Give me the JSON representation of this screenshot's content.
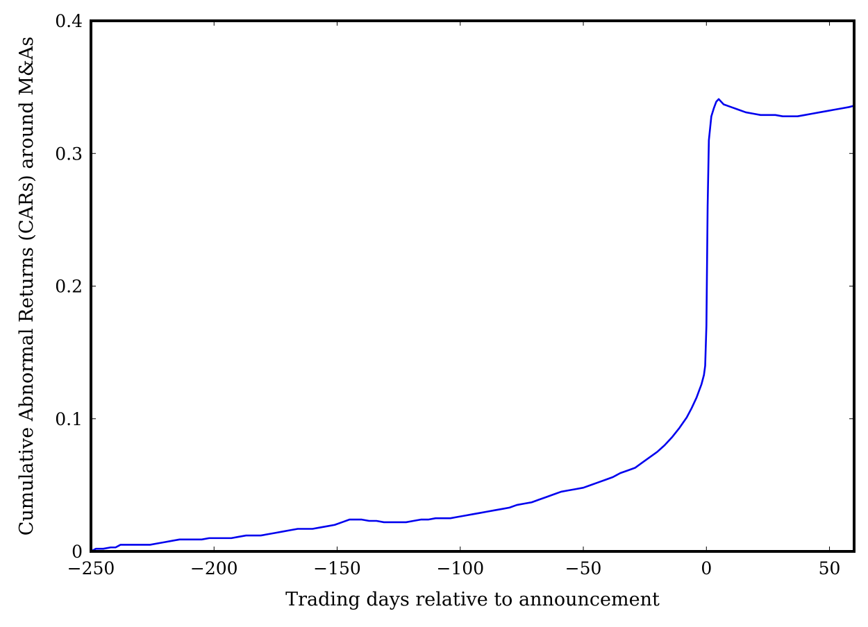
{
  "chart_data": {
    "type": "line",
    "title": "",
    "xlabel": "Trading days relative to announcement",
    "ylabel": "Cumulative Abnormal Returns (CARs) around M&As",
    "xlim": [
      -250,
      60
    ],
    "ylim": [
      0,
      0.4
    ],
    "xticks": [
      -250,
      -200,
      -150,
      -100,
      -50,
      0,
      50
    ],
    "xtick_labels": [
      "−250",
      "−200",
      "−150",
      "−100",
      "−50",
      "0",
      "50"
    ],
    "yticks": [
      0,
      0.1,
      0.2,
      0.3,
      0.4
    ],
    "ytick_labels": [
      "0",
      "0.1",
      "0.2",
      "0.3",
      "0.4"
    ],
    "grid": false,
    "legend": "none",
    "series": [
      {
        "color": "#0000ee",
        "x": [
          -250,
          -248,
          -245,
          -242,
          -240,
          -238,
          -235,
          -232,
          -229,
          -226,
          -223,
          -220,
          -217,
          -214,
          -211,
          -208,
          -205,
          -202,
          -199,
          -196,
          -193,
          -190,
          -187,
          -184,
          -181,
          -178,
          -175,
          -172,
          -169,
          -166,
          -163,
          -160,
          -157,
          -154,
          -151,
          -148,
          -145,
          -142,
          -140,
          -137,
          -134,
          -131,
          -128,
          -125,
          -122,
          -119,
          -116,
          -113,
          -110,
          -107,
          -104,
          -101,
          -98,
          -95,
          -92,
          -89,
          -86,
          -83,
          -80,
          -77,
          -74,
          -71,
          -68,
          -65,
          -62,
          -59,
          -56,
          -53,
          -50,
          -47,
          -44,
          -41,
          -38,
          -35,
          -32,
          -29,
          -26,
          -23,
          -20,
          -17,
          -14,
          -11,
          -8,
          -6,
          -4,
          -3,
          -2,
          -1,
          -0.5,
          0,
          0.5,
          1,
          2,
          3,
          4,
          5,
          7,
          10,
          13,
          16,
          19,
          22,
          25,
          28,
          31,
          34,
          37,
          40,
          43,
          46,
          49,
          52,
          55,
          58,
          60
        ],
        "y": [
          0.0,
          0.002,
          0.002,
          0.003,
          0.003,
          0.005,
          0.005,
          0.005,
          0.005,
          0.005,
          0.006,
          0.007,
          0.008,
          0.009,
          0.009,
          0.009,
          0.009,
          0.01,
          0.01,
          0.01,
          0.01,
          0.011,
          0.012,
          0.012,
          0.012,
          0.013,
          0.014,
          0.015,
          0.016,
          0.017,
          0.017,
          0.017,
          0.018,
          0.019,
          0.02,
          0.022,
          0.024,
          0.024,
          0.024,
          0.023,
          0.023,
          0.022,
          0.022,
          0.022,
          0.022,
          0.023,
          0.024,
          0.024,
          0.025,
          0.025,
          0.025,
          0.026,
          0.027,
          0.028,
          0.029,
          0.03,
          0.031,
          0.032,
          0.033,
          0.035,
          0.036,
          0.037,
          0.039,
          0.041,
          0.043,
          0.045,
          0.046,
          0.047,
          0.048,
          0.05,
          0.052,
          0.054,
          0.056,
          0.059,
          0.061,
          0.063,
          0.067,
          0.071,
          0.075,
          0.08,
          0.086,
          0.093,
          0.101,
          0.108,
          0.116,
          0.121,
          0.126,
          0.133,
          0.14,
          0.17,
          0.26,
          0.31,
          0.328,
          0.334,
          0.339,
          0.341,
          0.337,
          0.335,
          0.333,
          0.331,
          0.33,
          0.329,
          0.329,
          0.329,
          0.328,
          0.328,
          0.328,
          0.329,
          0.33,
          0.331,
          0.332,
          0.333,
          0.334,
          0.335,
          0.336
        ]
      }
    ]
  }
}
